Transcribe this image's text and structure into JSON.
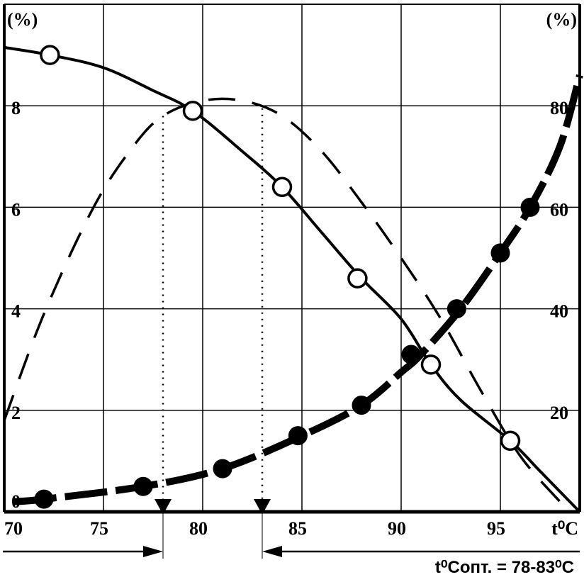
{
  "chart_data": {
    "type": "line",
    "title": "",
    "xlabel": "t⁰C",
    "xlim": [
      70,
      99
    ],
    "x_ticks": [
      "70",
      "75",
      "80",
      "85",
      "90",
      "95"
    ],
    "y_left": {
      "label": "(%)",
      "lim": [
        0,
        10
      ],
      "ticks": [
        "0",
        "2",
        "4",
        "6",
        "8"
      ]
    },
    "y_right": {
      "label": "(%)",
      "lim": [
        0,
        100
      ],
      "ticks": [
        "20",
        "40",
        "60",
        "80"
      ]
    },
    "grid": true,
    "series": [
      {
        "axis": "right",
        "style": "solid-open-circles",
        "points": [
          [
            70,
            91.5
          ],
          [
            72.3,
            90
          ],
          [
            75,
            87.5
          ],
          [
            77.5,
            83
          ],
          [
            79.5,
            79
          ],
          [
            82,
            71
          ],
          [
            84,
            64
          ],
          [
            86,
            55
          ],
          [
            88,
            46
          ],
          [
            90,
            38
          ],
          [
            91.5,
            29
          ],
          [
            93,
            22
          ],
          [
            95.5,
            14
          ],
          [
            97,
            8
          ],
          [
            99,
            0
          ]
        ],
        "markers": [
          [
            72.3,
            90
          ],
          [
            79.5,
            79
          ],
          [
            84,
            64
          ],
          [
            87.8,
            46
          ],
          [
            91.5,
            29
          ],
          [
            95.5,
            14
          ]
        ]
      },
      {
        "axis": "right",
        "style": "thick-dashed-filled-circles",
        "points": [
          [
            70.5,
            2
          ],
          [
            72,
            2.5
          ],
          [
            77,
            5
          ],
          [
            81,
            8.5
          ],
          [
            85,
            15
          ],
          [
            88,
            21
          ],
          [
            90,
            27.5
          ],
          [
            91,
            31
          ],
          [
            93,
            40
          ],
          [
            95,
            51
          ],
          [
            96.5,
            60
          ],
          [
            98,
            72
          ],
          [
            99,
            86
          ]
        ],
        "markers": [
          [
            72,
            2.5
          ],
          [
            77,
            5
          ],
          [
            81,
            8.5
          ],
          [
            84.8,
            15
          ],
          [
            88,
            21
          ],
          [
            90.5,
            31
          ],
          [
            92.8,
            40
          ],
          [
            95,
            51
          ],
          [
            96.5,
            60
          ]
        ]
      },
      {
        "axis": "left",
        "style": "dashed",
        "points": [
          [
            70,
            1.8
          ],
          [
            72,
            3.9
          ],
          [
            74.5,
            6
          ],
          [
            76.5,
            7.2
          ],
          [
            78,
            7.8
          ],
          [
            80,
            8.1
          ],
          [
            82,
            8.1
          ],
          [
            84,
            7.8
          ],
          [
            86,
            7.1
          ],
          [
            88,
            6.1
          ],
          [
            90,
            5
          ],
          [
            92,
            3.8
          ],
          [
            94,
            2.4
          ],
          [
            96,
            1.1
          ],
          [
            98,
            0.2
          ]
        ]
      }
    ],
    "optimum_range": [
      78,
      83
    ],
    "annotation": "t⁰Cопт. = 78-83⁰C"
  }
}
